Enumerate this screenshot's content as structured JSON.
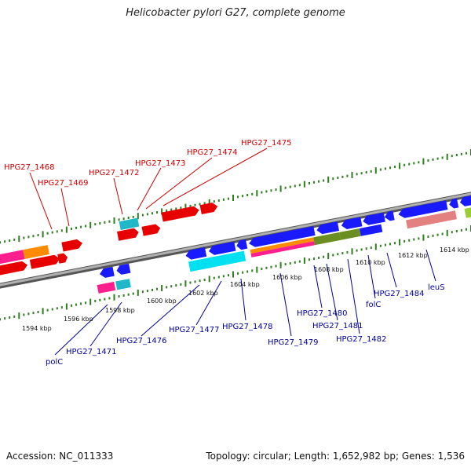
{
  "title": "Helicobacter pylori G27, complete genome",
  "footer": {
    "accession": "Accession: NC_011333",
    "summary": "Topology: circular; Length: 1,652,982 bp; Genes: 1,536"
  },
  "colors": {
    "backbone": "#8c8c8c",
    "tick": "#2e7d1e",
    "label_forward": "#cc0000",
    "label_reverse": "#000099"
  },
  "scale": {
    "ticks": [
      {
        "label": "1594 kbp"
      },
      {
        "label": "1596 kbp"
      },
      {
        "label": "1598 kbp"
      },
      {
        "label": "1600 kbp"
      },
      {
        "label": "1602 kbp"
      },
      {
        "label": "1604 kbp"
      },
      {
        "label": "1606 kbp"
      },
      {
        "label": "1608 kbp"
      },
      {
        "label": "1610 kbp"
      },
      {
        "label": "1612 kbp"
      },
      {
        "label": "1614 kbp"
      }
    ]
  },
  "forward_labels": [
    {
      "text": "HPG27_1468"
    },
    {
      "text": "HPG27_1469"
    },
    {
      "text": "HPG27_1472"
    },
    {
      "text": "HPG27_1473"
    },
    {
      "text": "HPG27_1474"
    },
    {
      "text": "HPG27_1475"
    }
  ],
  "reverse_labels": [
    {
      "text": "polC"
    },
    {
      "text": "HPG27_1471"
    },
    {
      "text": "HPG27_1476"
    },
    {
      "text": "HPG27_1477"
    },
    {
      "text": "HPG27_1478"
    },
    {
      "text": "HPG27_1479"
    },
    {
      "text": "HPG27_1480"
    },
    {
      "text": "HPG27_1481"
    },
    {
      "text": "HPG27_1482"
    },
    {
      "text": "folC"
    },
    {
      "text": "HPG27_1484"
    },
    {
      "text": "leuS"
    }
  ]
}
